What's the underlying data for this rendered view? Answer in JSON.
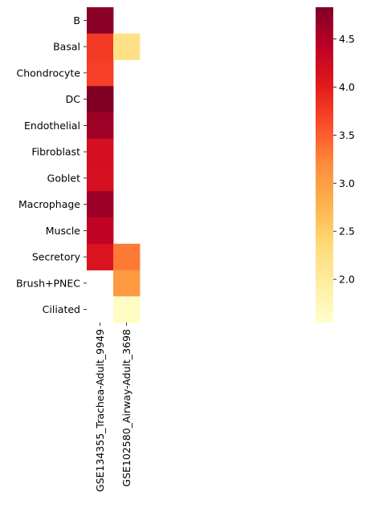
{
  "chart_data": {
    "type": "heatmap",
    "title": "",
    "xlabel": "",
    "ylabel": "",
    "rows": [
      "B",
      "Basal",
      "Chondrocyte",
      "DC",
      "Endothelial",
      "Fibroblast",
      "Goblet",
      "Macrophage",
      "Muscle",
      "Secretory",
      "Brush+PNEC",
      "Ciliated"
    ],
    "columns": [
      "GSE134355_Trachea-Adult_9949",
      "GSE102580_Airway-Adult_3698"
    ],
    "values": [
      [
        4.76,
        null
      ],
      [
        3.76,
        2.2
      ],
      [
        3.72,
        null
      ],
      [
        4.82,
        null
      ],
      [
        4.62,
        null
      ],
      [
        4.18,
        null
      ],
      [
        4.16,
        null
      ],
      [
        4.64,
        null
      ],
      [
        4.38,
        null
      ],
      [
        4.12,
        3.32
      ],
      [
        null,
        3.06
      ],
      [
        null,
        1.62
      ]
    ],
    "colorbar": {
      "min": 1.55,
      "max": 4.83,
      "ticks": [
        2.0,
        2.5,
        3.0,
        3.5,
        4.0,
        4.5
      ],
      "tick_labels": [
        "2.0",
        "2.5",
        "3.0",
        "3.5",
        "4.0",
        "4.5"
      ]
    },
    "colormap": "YlOrRd",
    "colors": [
      "#ffffcc",
      "#ffeda0",
      "#fed976",
      "#feb24c",
      "#fd8d3c",
      "#fc4e2a",
      "#e31a1c",
      "#bd0026",
      "#800026"
    ],
    "missing_cells": "blank",
    "grid": false,
    "legend": "colorbar right"
  }
}
